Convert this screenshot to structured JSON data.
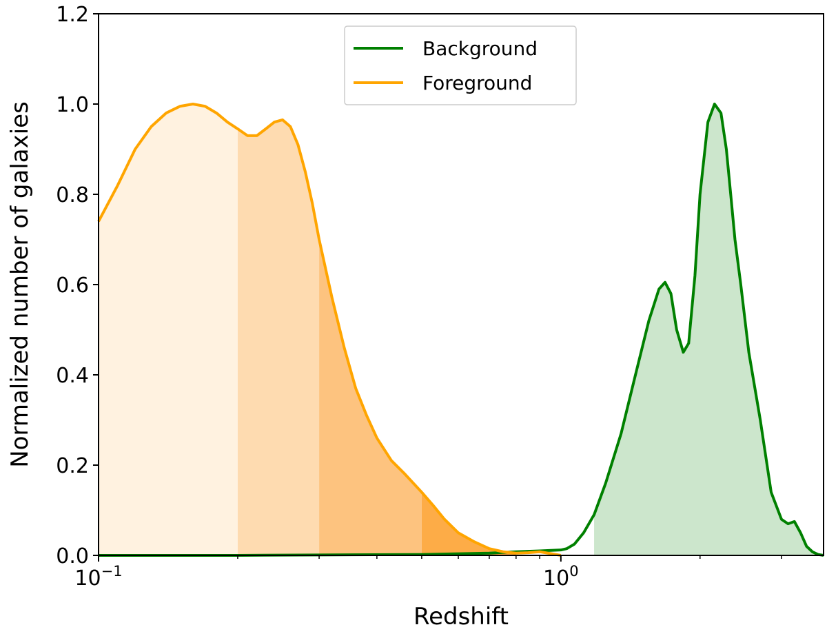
{
  "chart_data": {
    "type": "area",
    "xlabel": "Redshift",
    "ylabel": "Normalized number of galaxies",
    "xscale": "log",
    "xlim": [
      0.1,
      3.7
    ],
    "ylim": [
      0,
      1.2
    ],
    "xticks_major": [
      {
        "value": 0.1,
        "base": "10",
        "exp": "−1"
      },
      {
        "value": 1.0,
        "base": "10",
        "exp": "0"
      }
    ],
    "xticks_minor": [
      0.2,
      0.3,
      0.4,
      0.5,
      0.6,
      0.7,
      0.8,
      0.9,
      2,
      3
    ],
    "yticks": [
      {
        "value": 0.0,
        "label": "0.0"
      },
      {
        "value": 0.2,
        "label": "0.2"
      },
      {
        "value": 0.4,
        "label": "0.4"
      },
      {
        "value": 0.6,
        "label": "0.6"
      },
      {
        "value": 0.8,
        "label": "0.8"
      },
      {
        "value": 1.0,
        "label": "1.0"
      },
      {
        "value": 1.2,
        "label": "1.2"
      }
    ],
    "grid": false,
    "legend_position": "top-center",
    "series": [
      {
        "name": "Background",
        "color": "#008000",
        "fill_color": "#cce6cc",
        "fill_from": 1.18,
        "x": [
          0.1,
          0.2,
          0.3,
          0.5,
          0.7,
          0.8,
          0.9,
          1.0,
          1.03,
          1.07,
          1.12,
          1.18,
          1.25,
          1.35,
          1.45,
          1.55,
          1.63,
          1.68,
          1.73,
          1.78,
          1.84,
          1.89,
          1.95,
          2.0,
          2.08,
          2.15,
          2.22,
          2.28,
          2.33,
          2.38,
          2.45,
          2.55,
          2.7,
          2.85,
          3.0,
          3.1,
          3.2,
          3.3,
          3.4,
          3.5,
          3.6,
          3.7
        ],
        "y": [
          0.0,
          0.0,
          0.001,
          0.002,
          0.005,
          0.008,
          0.01,
          0.012,
          0.015,
          0.025,
          0.05,
          0.09,
          0.16,
          0.27,
          0.4,
          0.52,
          0.59,
          0.605,
          0.58,
          0.5,
          0.45,
          0.47,
          0.62,
          0.8,
          0.96,
          1.0,
          0.98,
          0.9,
          0.8,
          0.7,
          0.6,
          0.45,
          0.3,
          0.14,
          0.08,
          0.07,
          0.075,
          0.05,
          0.02,
          0.008,
          0.002,
          0.0
        ]
      },
      {
        "name": "Foreground",
        "color": "#ffa500",
        "fill_bands": [
          {
            "from": 0.1,
            "to": 0.2,
            "color": "#fff2e0"
          },
          {
            "from": 0.2,
            "to": 0.3,
            "color": "#fedbb0"
          },
          {
            "from": 0.3,
            "to": 0.5,
            "color": "#fdc37f"
          },
          {
            "from": 0.5,
            "to": 0.8,
            "color": "#fdac47"
          }
        ],
        "x": [
          0.1,
          0.11,
          0.12,
          0.13,
          0.14,
          0.15,
          0.16,
          0.17,
          0.18,
          0.19,
          0.2,
          0.21,
          0.22,
          0.23,
          0.24,
          0.25,
          0.26,
          0.27,
          0.28,
          0.29,
          0.3,
          0.32,
          0.34,
          0.36,
          0.38,
          0.4,
          0.43,
          0.46,
          0.5,
          0.53,
          0.56,
          0.6,
          0.65,
          0.7,
          0.75,
          0.8,
          0.85,
          0.9,
          0.95,
          1.0
        ],
        "y": [
          0.74,
          0.82,
          0.9,
          0.95,
          0.98,
          0.995,
          1.0,
          0.995,
          0.98,
          0.96,
          0.945,
          0.93,
          0.93,
          0.945,
          0.96,
          0.965,
          0.95,
          0.91,
          0.85,
          0.78,
          0.7,
          0.57,
          0.46,
          0.37,
          0.31,
          0.26,
          0.21,
          0.18,
          0.14,
          0.11,
          0.08,
          0.05,
          0.03,
          0.015,
          0.008,
          0.005,
          0.006,
          0.008,
          0.004,
          0.0
        ]
      }
    ]
  }
}
